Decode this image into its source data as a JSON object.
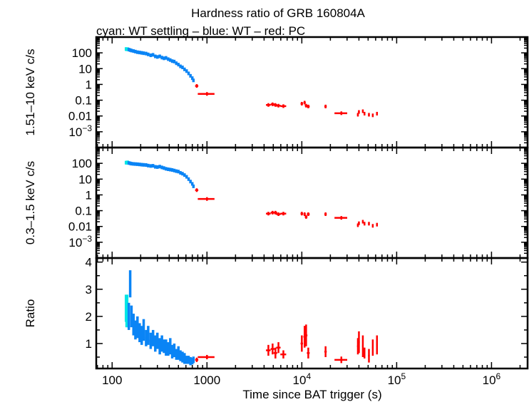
{
  "chart_data": {
    "type": "scatter",
    "title": "Hardness ratio of GRB 160804A",
    "subtitle": "cyan: WT settling – blue: WT – red: PC",
    "xlabel": "Time since BAT trigger (s)",
    "xscale": "log",
    "xlim": [
      68,
      2400000
    ],
    "x_ticks": [
      {
        "v": 100,
        "label": "100"
      },
      {
        "v": 1000,
        "label": "1000"
      },
      {
        "v": 10000,
        "label": "10",
        "exp": "4"
      },
      {
        "v": 100000,
        "label": "10",
        "exp": "5"
      },
      {
        "v": 1000000,
        "label": "10",
        "exp": "6"
      }
    ],
    "colors": {
      "wt_settling": "#00e5e5",
      "wt": "#0a84f5",
      "pc": "#ff0000"
    },
    "panels": [
      {
        "key": "hard",
        "ylabel": "1.51–10 keV c/s",
        "yscale": "log",
        "ylim": [
          0.0001,
          1000
        ],
        "y_ticks": [
          {
            "v": 100,
            "label": "100"
          },
          {
            "v": 10,
            "label": "10"
          },
          {
            "v": 1,
            "label": "1"
          },
          {
            "v": 0.1,
            "label": "0.1"
          },
          {
            "v": 0.01,
            "label": "0.01"
          },
          {
            "v": 0.001,
            "label": "10",
            "exp": "−3"
          }
        ]
      },
      {
        "key": "soft",
        "ylabel": "0.3–1.5 keV c/s",
        "yscale": "log",
        "ylim": [
          0.0001,
          1000
        ],
        "y_ticks": [
          {
            "v": 100,
            "label": "100"
          },
          {
            "v": 10,
            "label": "10"
          },
          {
            "v": 1,
            "label": "1"
          },
          {
            "v": 0.1,
            "label": "0.1"
          },
          {
            "v": 0.01,
            "label": "0.01"
          },
          {
            "v": 0.001,
            "label": "10",
            "exp": "−3"
          }
        ]
      },
      {
        "key": "ratio",
        "ylabel": "Ratio",
        "yscale": "linear",
        "ylim": [
          0.08,
          4.15
        ],
        "y_ticks": [
          {
            "v": 1,
            "label": "1"
          },
          {
            "v": 2,
            "label": "2"
          },
          {
            "v": 3,
            "label": "3"
          },
          {
            "v": 4,
            "label": "4"
          }
        ]
      }
    ],
    "series": [
      {
        "mode": "wt_settling",
        "points": [
          [
            140,
            3,
            175,
            110,
            2.3,
            0.5
          ],
          [
            142,
            3,
            170,
            112,
            2.1,
            0.5
          ],
          [
            144,
            3,
            168,
            108,
            2.2,
            0.6
          ],
          [
            146,
            3,
            172,
            115,
            2.0,
            0.4
          ]
        ]
      },
      {
        "mode": "wt",
        "points": [
          [
            150,
            3,
            160,
            105,
            2.0,
            0.5
          ],
          [
            155,
            3,
            150,
            100,
            3.2,
            0.5
          ],
          [
            160,
            3,
            140,
            95,
            2.0,
            0.4
          ],
          [
            168,
            4,
            130,
            92,
            1.7,
            0.4
          ],
          [
            176,
            4,
            120,
            90,
            1.5,
            0.35
          ],
          [
            185,
            4,
            110,
            88,
            1.6,
            0.4
          ],
          [
            195,
            5,
            105,
            85,
            1.4,
            0.35
          ],
          [
            205,
            5,
            100,
            82,
            1.3,
            0.35
          ],
          [
            215,
            5,
            95,
            80,
            1.5,
            0.4
          ],
          [
            228,
            6,
            90,
            78,
            1.2,
            0.3
          ],
          [
            240,
            6,
            80,
            72,
            1.3,
            0.35
          ],
          [
            255,
            7,
            70,
            68,
            1.1,
            0.3
          ],
          [
            270,
            7,
            75,
            70,
            1.2,
            0.3
          ],
          [
            285,
            7,
            60,
            60,
            1.0,
            0.3
          ],
          [
            300,
            8,
            55,
            58,
            1.1,
            0.3
          ],
          [
            318,
            8,
            60,
            62,
            0.9,
            0.3
          ],
          [
            335,
            8,
            50,
            55,
            1.0,
            0.3
          ],
          [
            352,
            9,
            45,
            50,
            0.9,
            0.25
          ],
          [
            370,
            9,
            48,
            45,
            0.85,
            0.3
          ],
          [
            390,
            10,
            40,
            42,
            0.8,
            0.25
          ],
          [
            410,
            10,
            35,
            40,
            0.9,
            0.3
          ],
          [
            430,
            11,
            30,
            38,
            0.7,
            0.25
          ],
          [
            452,
            11,
            28,
            35,
            0.75,
            0.25
          ],
          [
            475,
            12,
            22,
            32,
            0.6,
            0.2
          ],
          [
            500,
            12,
            18,
            30,
            0.65,
            0.25
          ],
          [
            525,
            13,
            14,
            25,
            0.55,
            0.2
          ],
          [
            552,
            13,
            12,
            22,
            0.5,
            0.2
          ],
          [
            580,
            14,
            9,
            18,
            0.45,
            0.2
          ],
          [
            610,
            15,
            7,
            14,
            0.4,
            0.15
          ],
          [
            640,
            15,
            5,
            10,
            0.4,
            0.15
          ],
          [
            670,
            16,
            3.5,
            7,
            0.35,
            0.15
          ],
          [
            700,
            16,
            2.5,
            5,
            0.35,
            0.12
          ],
          [
            720,
            12,
            1.8,
            3.5,
            0.4,
            0.12
          ]
        ]
      },
      {
        "mode": "pc",
        "points": [
          [
            780,
            30,
            0.8,
            2.0,
            0.4,
            0.08
          ],
          [
            1000,
            200,
            0.25,
            0.55,
            0.5,
            0.08
          ],
          [
            4440,
            250,
            0.05,
            0.065,
            0.75,
            0.2
          ],
          [
            4920,
            230,
            0.055,
            0.075,
            0.8,
            0.2
          ],
          [
            5270,
            230,
            0.05,
            0.075,
            0.65,
            0.2
          ],
          [
            5670,
            300,
            0.045,
            0.06,
            0.85,
            0.2
          ],
          [
            6390,
            450,
            0.042,
            0.065,
            0.6,
            0.15
          ],
          [
            10000,
            300,
            0.06,
            0.065,
            1.0,
            0.3
          ],
          [
            10700,
            300,
            0.07,
            0.06,
            1.25,
            0.4
          ],
          [
            11100,
            350,
            0.045,
            0.04,
            1.3,
            0.4
          ],
          [
            11700,
            400,
            0.04,
            0.06,
            0.65,
            0.2
          ],
          [
            17800,
            500,
            0.04,
            0.06,
            0.7,
            0.2
          ],
          [
            26100,
            4000,
            0.015,
            0.035,
            0.4,
            0.12
          ],
          [
            39000,
            800,
            0.012,
            0.012,
            0.9,
            0.3
          ],
          [
            40000,
            800,
            0.018,
            0.016,
            1.05,
            0.4
          ],
          [
            44000,
            800,
            0.02,
            0.02,
            0.9,
            0.4
          ],
          [
            45800,
            900,
            0.014,
            0.015,
            0.65,
            0.2
          ],
          [
            51000,
            1000,
            0.012,
            0.015,
            0.55,
            0.25
          ],
          [
            56000,
            1000,
            0.011,
            0.011,
            0.85,
            0.3
          ],
          [
            62000,
            1200,
            0.014,
            0.013,
            0.95,
            0.35
          ]
        ]
      }
    ]
  }
}
